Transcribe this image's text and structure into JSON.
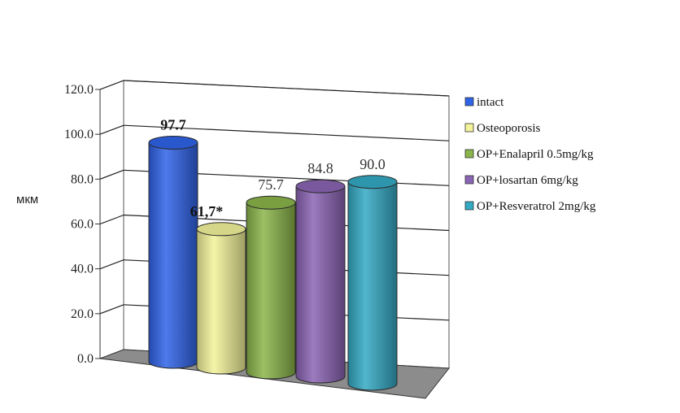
{
  "chart_data": {
    "type": "bar",
    "ylabel": "мкм",
    "ylim": [
      0,
      120
    ],
    "yticks": [
      "0.0",
      "20.0",
      "40.0",
      "60.0",
      "80.0",
      "100.0",
      "120.0"
    ],
    "ytick_values": [
      0,
      20,
      40,
      60,
      80,
      100,
      120
    ],
    "grid": true,
    "legend_position": "right",
    "style": "3d-cylinder",
    "series": [
      {
        "name": "intact",
        "value": 97.7,
        "label": "97.7",
        "label_bold": true,
        "color": "#2f63e8"
      },
      {
        "name": "Osteoporosis",
        "value": 61.7,
        "label": "61,7*",
        "label_bold": true,
        "color": "#f3f39a"
      },
      {
        "name": "OP+Enalapril 0.5mg/kg",
        "value": 75.7,
        "label": "75.7",
        "label_bold": false,
        "color": "#8ab54a"
      },
      {
        "name": "OP+losartan 6mg/kg",
        "value": 84.8,
        "label": "84.8",
        "label_bold": false,
        "color": "#8a64b4"
      },
      {
        "name": "OP+Resveratrol 2mg/kg",
        "value": 90.0,
        "label": "90.0",
        "label_bold": false,
        "color": "#33a9c4"
      }
    ]
  }
}
